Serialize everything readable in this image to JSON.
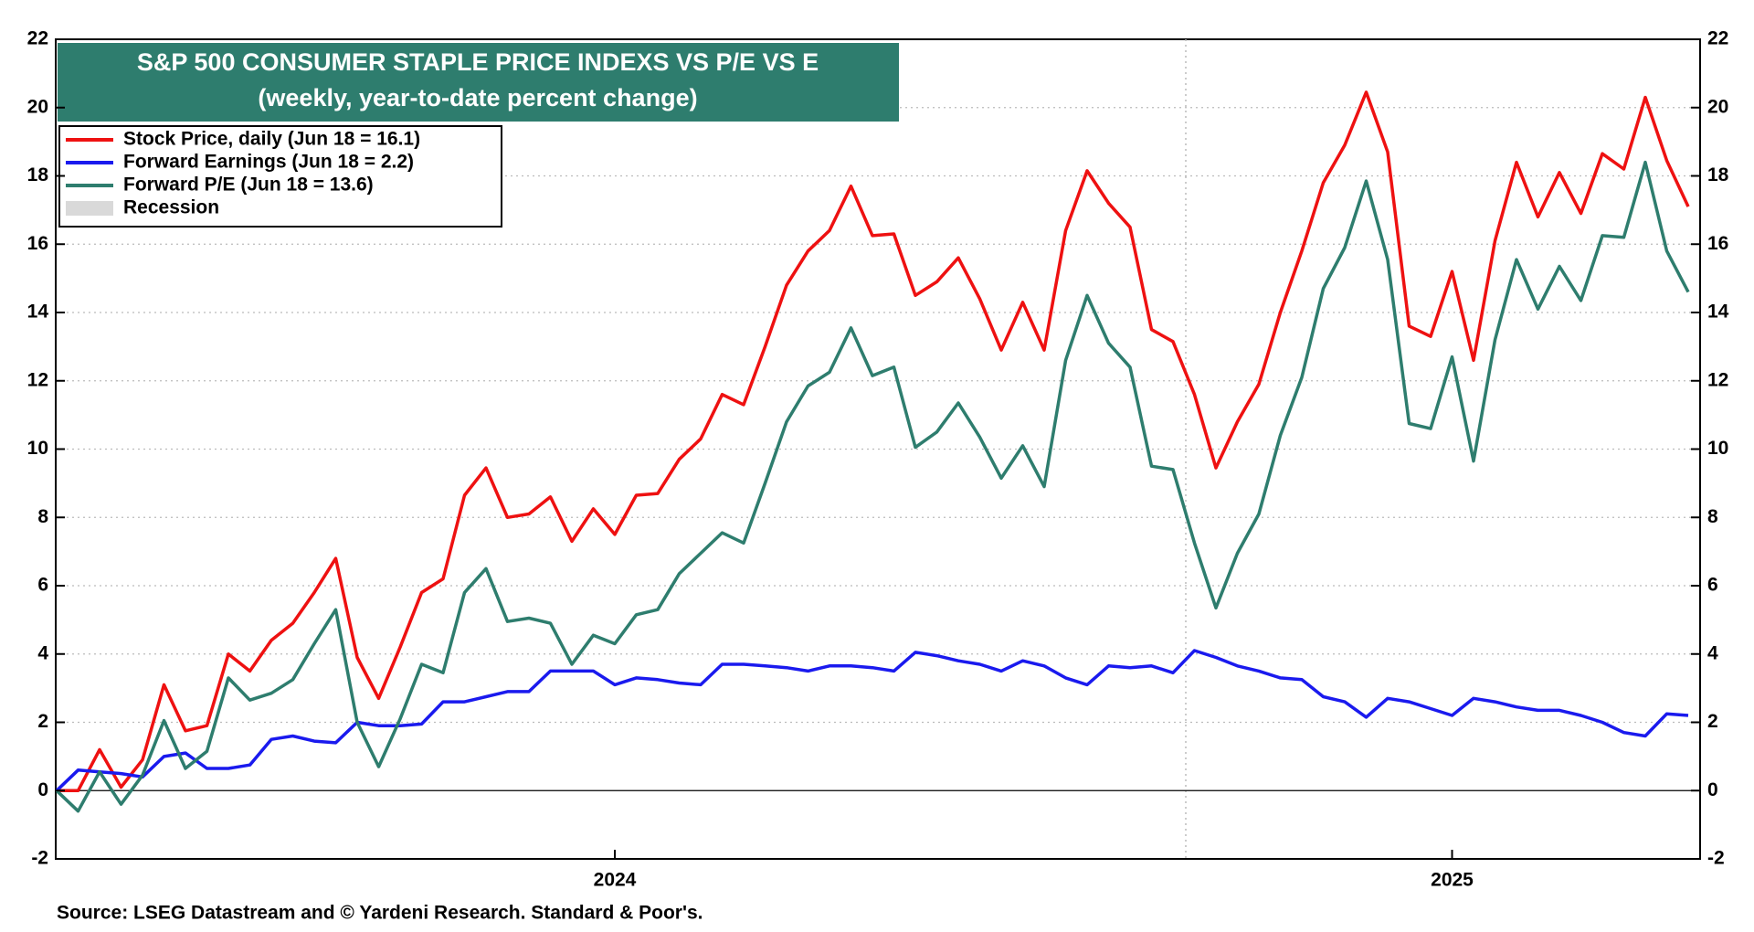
{
  "chart_data": {
    "type": "line",
    "title": "S&P 500 CONSUMER STAPLE PRICE INDEXS VS P/E VS E",
    "subtitle": "(weekly, year-to-date percent change)",
    "source": "Source: LSEG Datastream and © Yardeni Research. Standard & Poor's.",
    "categories": [
      null,
      null,
      null,
      null,
      null,
      null,
      null,
      null,
      null,
      null,
      null,
      null,
      null,
      null,
      null,
      null,
      null,
      null,
      null,
      null,
      null,
      null,
      null,
      null,
      null,
      null,
      "2024",
      null,
      null,
      null,
      null,
      null,
      null,
      null,
      null,
      null,
      null,
      null,
      null,
      null,
      null,
      null,
      null,
      null,
      null,
      null,
      null,
      null,
      null,
      null,
      null,
      null,
      null,
      null,
      null,
      null,
      null,
      null,
      null,
      null,
      null,
      null,
      null,
      null,
      null,
      "2025",
      null,
      null,
      null,
      null,
      null,
      null,
      null,
      null,
      null,
      null,
      null
    ],
    "series": [
      {
        "name": "Stock Price, daily (Jun 18 = 16.1)",
        "color": "#ee1111",
        "values": [
          0,
          0,
          1.2,
          0.1,
          0.9,
          3.1,
          1.75,
          1.9,
          4.0,
          3.5,
          4.4,
          4.9,
          5.8,
          6.8,
          3.9,
          2.7,
          4.2,
          5.8,
          6.2,
          8.65,
          9.45,
          8.0,
          8.1,
          8.6,
          7.3,
          8.25,
          7.5,
          8.65,
          8.7,
          9.7,
          10.3,
          11.6,
          11.3,
          13.0,
          14.8,
          15.8,
          16.4,
          17.7,
          16.25,
          16.3,
          14.5,
          14.9,
          15.6,
          14.4,
          12.9,
          14.3,
          12.9,
          16.4,
          18.15,
          17.2,
          16.5,
          13.5,
          13.15,
          11.6,
          9.45,
          10.8,
          11.9,
          14.0,
          15.8,
          17.8,
          18.9,
          20.45,
          18.7,
          13.6,
          13.3,
          15.2,
          12.6,
          16.1,
          18.4,
          16.8,
          18.1,
          16.9,
          18.65,
          18.2,
          20.3,
          18.45,
          17.1
        ]
      },
      {
        "name": "Forward Earnings (Jun 18 = 2.2)",
        "color": "#1a1aee",
        "values": [
          0,
          0.6,
          0.55,
          0.5,
          0.4,
          1.0,
          1.1,
          0.65,
          0.65,
          0.75,
          1.5,
          1.6,
          1.45,
          1.4,
          2.0,
          1.9,
          1.9,
          1.95,
          2.6,
          2.6,
          2.75,
          2.9,
          2.9,
          3.5,
          3.5,
          3.5,
          3.1,
          3.3,
          3.25,
          3.15,
          3.1,
          3.7,
          3.7,
          3.65,
          3.6,
          3.5,
          3.65,
          3.65,
          3.6,
          3.5,
          4.05,
          3.95,
          3.8,
          3.7,
          3.5,
          3.8,
          3.65,
          3.3,
          3.1,
          3.65,
          3.6,
          3.65,
          3.45,
          4.1,
          3.9,
          3.65,
          3.5,
          3.3,
          3.25,
          2.75,
          2.6,
          2.15,
          2.7,
          2.6,
          2.4,
          2.2,
          2.7,
          2.6,
          2.45,
          2.35,
          2.35,
          2.2,
          2.0,
          1.7,
          1.6,
          2.25,
          2.2
        ]
      },
      {
        "name": "Forward P/E (Jun 18 = 13.6)",
        "color": "#2e7d6e",
        "values": [
          0,
          -0.6,
          0.55,
          -0.4,
          0.45,
          2.05,
          0.65,
          1.15,
          3.3,
          2.65,
          2.85,
          3.25,
          4.3,
          5.3,
          2.0,
          0.7,
          2.1,
          3.7,
          3.45,
          5.8,
          6.5,
          4.95,
          5.05,
          4.9,
          3.7,
          4.55,
          4.3,
          5.15,
          5.3,
          6.35,
          6.95,
          7.55,
          7.25,
          9.0,
          10.8,
          11.85,
          12.25,
          13.55,
          12.15,
          12.4,
          10.05,
          10.5,
          11.35,
          10.35,
          9.15,
          10.1,
          8.9,
          12.6,
          14.5,
          13.1,
          12.4,
          9.5,
          9.4,
          7.25,
          5.35,
          6.95,
          8.1,
          10.4,
          12.1,
          14.7,
          15.9,
          17.85,
          15.55,
          10.75,
          10.6,
          12.7,
          9.65,
          13.2,
          15.55,
          14.1,
          15.35,
          14.35,
          16.25,
          16.2,
          18.4,
          15.8,
          14.6
        ]
      }
    ],
    "legend_extra": {
      "name": "Recession",
      "color": "#d9d9d9"
    },
    "ylim": [
      -2,
      22
    ],
    "yticks": [
      -2,
      0,
      2,
      4,
      6,
      8,
      10,
      12,
      14,
      16,
      18,
      20,
      22
    ],
    "y2lim": [
      -2,
      22
    ],
    "y2ticks": [
      -2,
      0,
      2,
      4,
      6,
      8,
      10,
      12,
      14,
      16,
      18,
      20,
      22
    ],
    "title_box_color": "#2e7d6e",
    "grid": true
  }
}
